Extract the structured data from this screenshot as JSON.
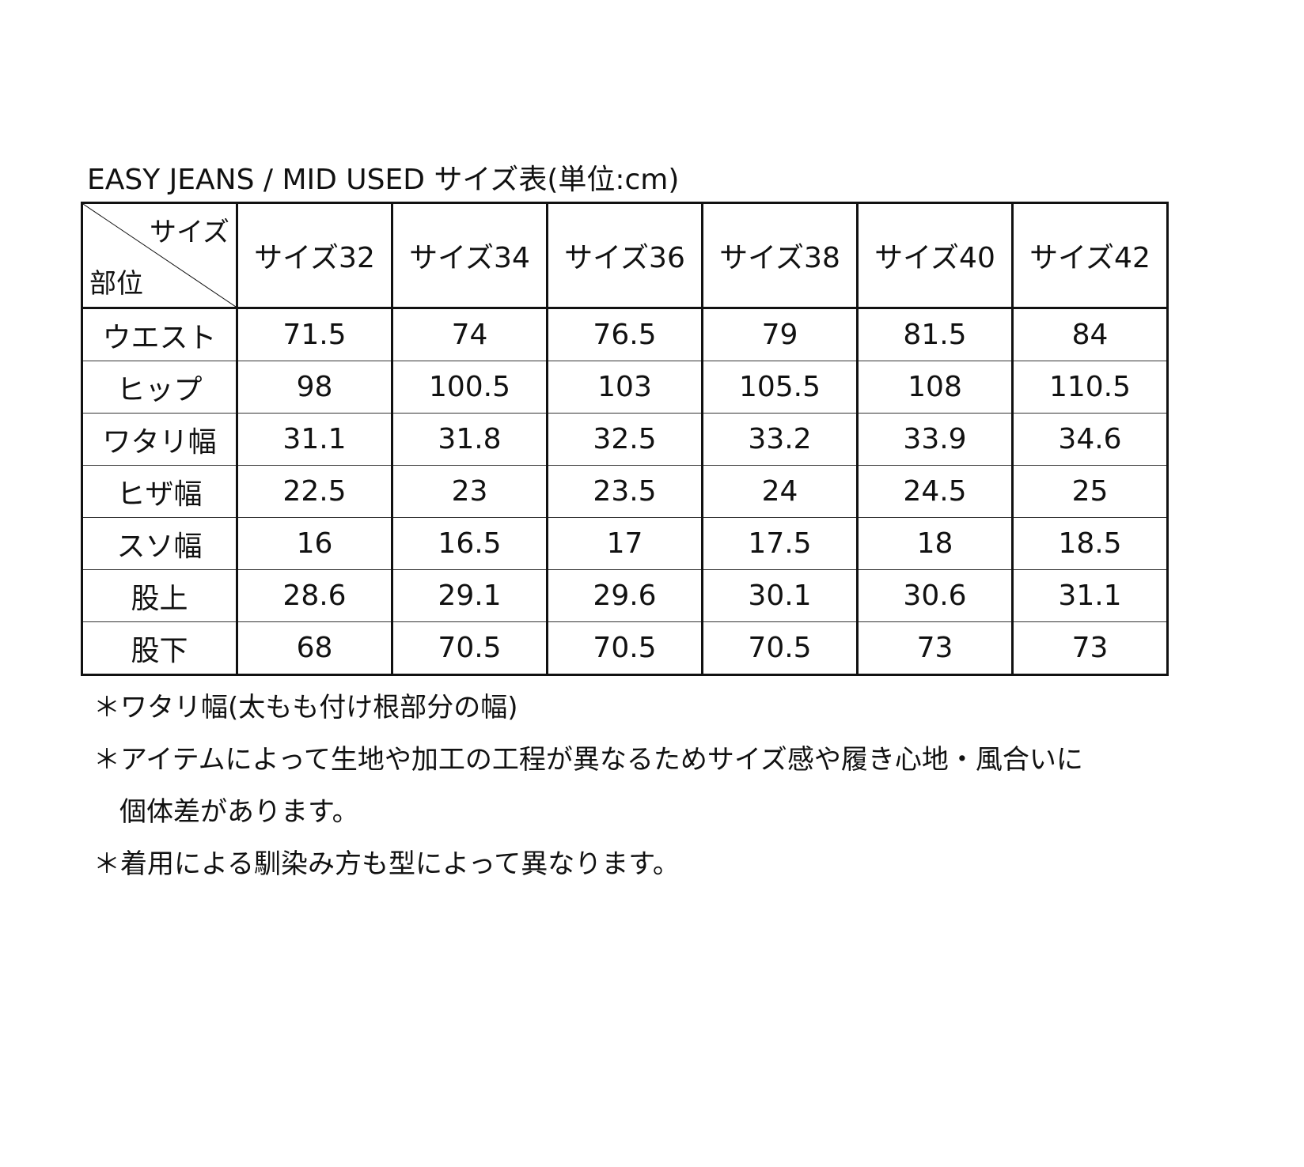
{
  "title": "EASY JEANS / MID USED サイズ表(単位:cm)",
  "table": {
    "corner_top": "サイズ",
    "corner_bottom": "部位",
    "columns": [
      "サイズ32",
      "サイズ34",
      "サイズ36",
      "サイズ38",
      "サイズ40",
      "サイズ42"
    ],
    "rows": [
      {
        "label": "ウエスト",
        "values": [
          "71.5",
          "74",
          "76.5",
          "79",
          "81.5",
          "84"
        ]
      },
      {
        "label": "ヒップ",
        "values": [
          "98",
          "100.5",
          "103",
          "105.5",
          "108",
          "110.5"
        ]
      },
      {
        "label": "ワタリ幅",
        "values": [
          "31.1",
          "31.8",
          "32.5",
          "33.2",
          "33.9",
          "34.6"
        ]
      },
      {
        "label": "ヒザ幅",
        "values": [
          "22.5",
          "23",
          "23.5",
          "24",
          "24.5",
          "25"
        ]
      },
      {
        "label": "スソ幅",
        "values": [
          "16",
          "16.5",
          "17",
          "17.5",
          "18",
          "18.5"
        ]
      },
      {
        "label": "股上",
        "values": [
          "28.6",
          "29.1",
          "29.6",
          "30.1",
          "30.6",
          "31.1"
        ]
      },
      {
        "label": "股下",
        "values": [
          "68",
          "70.5",
          "70.5",
          "70.5",
          "73",
          "73"
        ]
      }
    ]
  },
  "notes": [
    "＊ワタリ幅(太もも付け根部分の幅)",
    "＊アイテムによって生地や加工の工程が異なるためサイズ感や履き心地・風合いに",
    "個体差があります。",
    "＊着用による馴染み方も型によって異なります。"
  ]
}
